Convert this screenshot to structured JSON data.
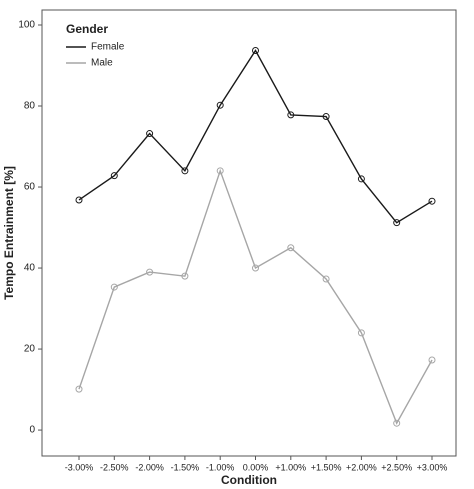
{
  "chart_data": {
    "type": "line",
    "x_label": "Condition",
    "y_label": "Tempo Entrainment [%]",
    "legend_title": "Gender",
    "legend_position": "upper left",
    "categories": [
      "-3.00%",
      "-2.50%",
      "-2.00%",
      "-1.50%",
      "-1.00%",
      "0.00%",
      "+1.00%",
      "+1.50%",
      "+2.00%",
      "+2.50%",
      "+3.00%"
    ],
    "series": [
      {
        "name": "Female",
        "color": "#1a1a1a",
        "values": [
          56.8,
          62.8,
          73.2,
          64,
          80.2,
          93.7,
          77.8,
          77.4,
          62,
          51.2,
          56.5
        ]
      },
      {
        "name": "Male",
        "color": "#a6a6a6",
        "values": [
          10.1,
          35.3,
          39,
          38,
          64,
          40,
          45,
          37.3,
          24,
          1.7,
          17.3
        ]
      }
    ],
    "ylim": [
      -6.4,
      103.7
    ],
    "yticks": [
      0,
      20,
      40,
      60,
      80,
      100
    ],
    "grid": false
  }
}
